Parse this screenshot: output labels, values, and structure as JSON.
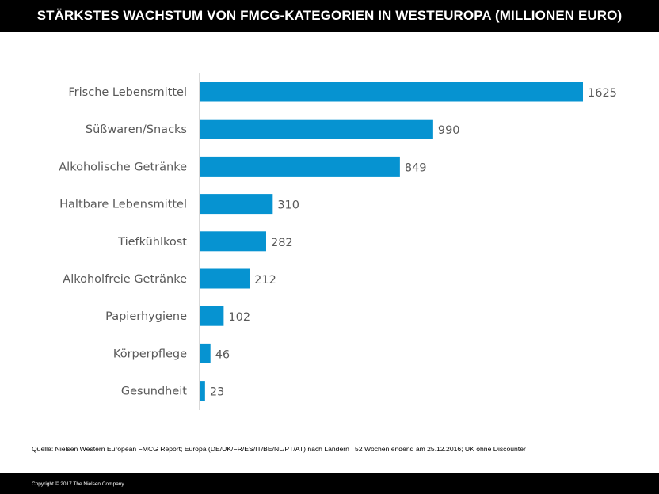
{
  "header": {
    "title": "STÄRKSTES WACHSTUM VON FMCG-KATEGORIEN IN WESTEUROPA (MILLIONEN EURO)"
  },
  "chart_data": {
    "type": "bar",
    "orientation": "horizontal",
    "title": "STÄRKSTES WACHSTUM VON FMCG-KATEGORIEN IN WESTEUROPA (MILLIONEN EURO)",
    "categories": [
      "Frische Lebensmittel",
      "Süßwaren/Snacks",
      "Alkoholische Getränke",
      "Haltbare Lebensmittel",
      "Tiefkühlkost",
      "Alkoholfreie Getränke",
      "Papierhygiene",
      "Körperpflege",
      "Gesundheit"
    ],
    "values": [
      1625,
      990,
      849,
      310,
      282,
      212,
      102,
      46,
      23
    ],
    "xlim": [
      0,
      1625
    ],
    "bar_color": "#0693D1",
    "data_labels": true,
    "grid": false,
    "legend": "none"
  },
  "source": {
    "text": "Quelle: Nielsen Western European FMCG Report; Europa (DE/UK/FR/ES/IT/BE/NL/PT/AT) nach Ländern ; 52 Wochen endend am 25.12.2016; UK ohne Discounter"
  },
  "footer": {
    "copyright": "Copyright © 2017 The Nielsen Company"
  }
}
